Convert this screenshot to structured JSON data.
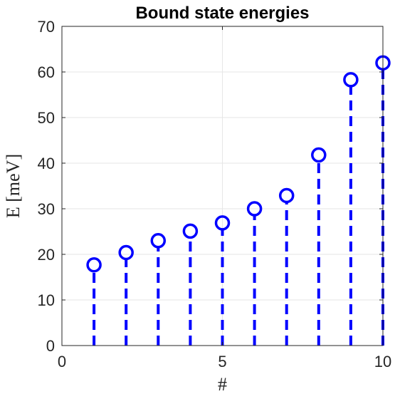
{
  "chart_data": {
    "type": "scatter",
    "style": "stem",
    "title": "Bound state energies",
    "xlabel": "#",
    "ylabel": "E [meV]",
    "xlim": [
      0,
      10
    ],
    "ylim": [
      0,
      70
    ],
    "xticks": [
      "0",
      "5",
      "10"
    ],
    "yticks": [
      "0",
      "10",
      "20",
      "30",
      "40",
      "50",
      "60",
      "70"
    ],
    "grid": true,
    "marker": "open-circle",
    "line_style": "dashed",
    "series": [
      {
        "x": [
          1,
          2,
          3,
          4,
          5,
          6,
          7,
          8,
          9,
          10
        ],
        "values": [
          17.7,
          20.4,
          23.0,
          25.1,
          26.9,
          30.0,
          32.9,
          41.8,
          58.3,
          62.0
        ]
      }
    ]
  },
  "colors": {
    "series": "#0000ff",
    "grid": "#e6e6e6",
    "axes": "#262626"
  }
}
